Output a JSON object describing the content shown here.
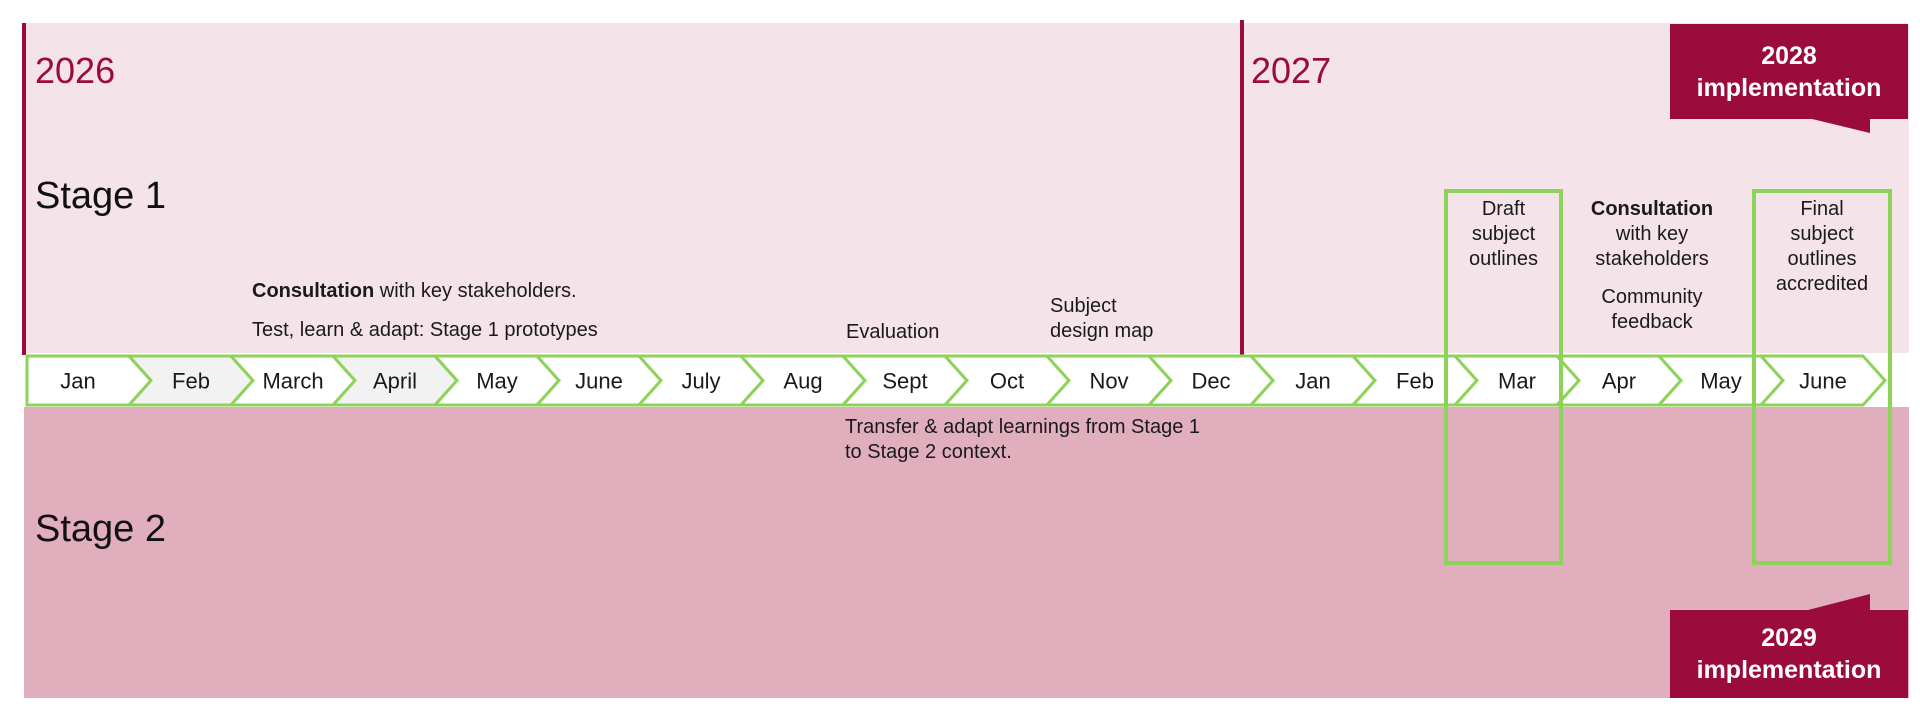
{
  "years": {
    "first": "2026",
    "second": "2027"
  },
  "stages": {
    "stage1": "Stage 1",
    "stage2": "Stage 2"
  },
  "implementation": {
    "top": {
      "line1": "2028",
      "line2": "implementation"
    },
    "bottom": {
      "line1": "2029",
      "line2": "implementation"
    }
  },
  "notes": {
    "consultation_bold": "Consultation",
    "consultation_rest": " with key stakeholders.",
    "prototypes": "Test, learn & adapt: Stage 1 prototypes",
    "evaluation": "Evaluation",
    "design_map": [
      "Subject",
      "design map"
    ],
    "transfer": [
      "Transfer & adapt learnings from Stage 1",
      "to Stage 2 context."
    ],
    "draft_outlines": [
      "Draft",
      "subject",
      "outlines"
    ],
    "consultation2_bold": "Consultation",
    "consultation2_rest": [
      "with key",
      "stakeholders"
    ],
    "community_feedback": [
      "Community",
      "feedback"
    ],
    "final_outlines": [
      "Final",
      "subject",
      "outlines",
      "accredited"
    ]
  },
  "timeline": {
    "months": [
      "Jan",
      "Feb",
      "March",
      "April",
      "May",
      "June",
      "July",
      "Aug",
      "Sept",
      "Oct",
      "Nov",
      "Dec",
      "Jan",
      "Feb",
      "Mar",
      "Apr",
      "May",
      "June"
    ],
    "shaded": [
      false,
      true,
      false,
      true,
      false,
      false,
      false,
      false,
      false,
      false,
      false,
      false,
      false,
      false,
      false,
      false,
      false,
      false
    ]
  },
  "colors": {
    "brand": "#9b0c3c",
    "stage1_bg": "#f4e3e9",
    "stage2_bg": "#e1aebe",
    "timeline_outline": "#8dd35a",
    "chevron_fill": "#ffffff",
    "chevron_shaded": "#f2f2f2"
  }
}
